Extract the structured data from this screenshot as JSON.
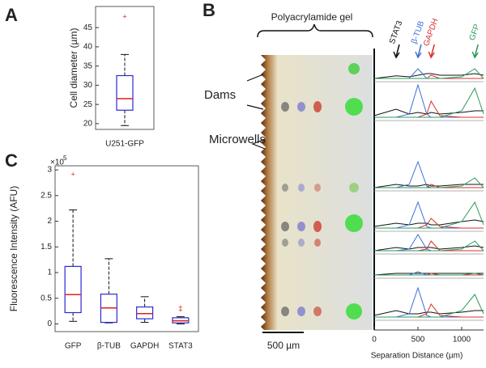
{
  "panel_labels": [
    "A",
    "B",
    "C"
  ],
  "gel": {
    "title": "Polyacrylamide gel",
    "labels": [
      "Dams",
      "Microwells"
    ],
    "scale_bar": "500 µm"
  },
  "chart_data": [
    {
      "type": "box",
      "ylabel": "Cell diameter (µm)",
      "categories": [
        "U251-GFP"
      ],
      "boxes": [
        {
          "whisker_low": 19.5,
          "q1": 23.5,
          "median": 26.5,
          "q3": 32.5,
          "whisker_high": 38,
          "outliers": [
            48
          ]
        }
      ],
      "ylim": [
        18.5,
        50.5
      ],
      "yticks": [
        20,
        25,
        30,
        35,
        40,
        45
      ],
      "box_color": "#2a2ad4",
      "median_color": "#e0201a"
    },
    {
      "type": "box",
      "ylabel": "Fluorescence Intensity (AFU)",
      "y_multiplier": "×10",
      "y_exponent": "5",
      "categories": [
        "GFP",
        "β-TUB",
        "GAPDH",
        "STAT3"
      ],
      "boxes": [
        {
          "whisker_low": 0.05,
          "q1": 0.22,
          "median": 0.57,
          "q3": 1.12,
          "whisker_high": 2.22,
          "outliers": [
            2.92
          ]
        },
        {
          "whisker_low": 0.02,
          "q1": 0.03,
          "median": 0.31,
          "q3": 0.58,
          "whisker_high": 1.27,
          "outliers": []
        },
        {
          "whisker_low": 0.03,
          "q1": 0.1,
          "median": 0.2,
          "q3": 0.33,
          "whisker_high": 0.53,
          "outliers": []
        },
        {
          "whisker_low": 0.0,
          "q1": 0.02,
          "median": 0.06,
          "q3": 0.12,
          "whisker_high": 0.14,
          "outliers": [
            0.27,
            0.33
          ]
        }
      ],
      "ylim": [
        -0.15,
        3.08
      ],
      "yticks": [
        0,
        0.5,
        1,
        1.5,
        2,
        2.5,
        3
      ],
      "box_color": "#2a2ad4",
      "median_color": "#e0201a"
    },
    {
      "type": "trace",
      "xlabel": "Separation Distance (µm)",
      "x": [
        0,
        250,
        400,
        500,
        600,
        650,
        750,
        1000,
        1150,
        1250
      ],
      "xlim": [
        0,
        1250
      ],
      "xticks": [
        0,
        500,
        1000
      ],
      "series": [
        {
          "name": "STAT3",
          "color": "#111111",
          "values": [
            [
              0,
              0.08,
              0.05,
              0.1,
              0.15,
              0.15,
              0.1,
              0.1,
              0.15,
              0.1
            ],
            [
              0.05,
              0.25,
              0.1,
              0.15,
              0.1,
              0.15,
              0.1,
              0.15,
              0.2,
              0.2
            ],
            [
              0,
              0.1,
              0.05,
              0.05,
              0.1,
              0.05,
              0.05,
              0.1,
              0.1,
              0.1
            ],
            [
              0.05,
              0.15,
              0.1,
              0.15,
              0.15,
              0.1,
              0.1,
              0.2,
              0.25,
              0.2
            ],
            [
              0,
              0.1,
              0.05,
              0.1,
              0.1,
              0.1,
              0.05,
              0.1,
              0.15,
              0.1
            ],
            [
              0,
              0.05,
              0.05,
              0.05,
              0.05,
              0.05,
              0.05,
              0.05,
              0.05,
              0.05
            ],
            [
              0.05,
              0.2,
              0.1,
              0.1,
              0.15,
              0.15,
              0.1,
              0.15,
              0.2,
              0.2
            ]
          ]
        },
        {
          "name": "β-TUB",
          "color": "#3d6fd8",
          "values": [
            [
              0,
              0,
              0,
              0.3,
              0,
              0,
              0,
              0,
              0,
              0
            ],
            [
              0,
              0,
              0.1,
              1,
              0.1,
              0,
              0,
              0,
              0,
              0
            ],
            [
              0,
              0,
              0.1,
              0.8,
              0.05,
              0,
              0,
              0,
              0,
              0
            ],
            [
              0,
              0,
              0.1,
              0.8,
              0.05,
              0,
              0,
              0,
              0,
              0
            ],
            [
              0,
              0,
              0.05,
              0.5,
              0.05,
              0,
              0,
              0,
              0,
              0
            ],
            [
              0,
              0,
              0,
              0.1,
              0,
              0,
              0,
              0,
              0,
              0
            ],
            [
              0,
              0,
              0.1,
              0.9,
              0.05,
              0,
              0,
              0,
              0,
              0
            ]
          ]
        },
        {
          "name": "GAPDH",
          "color": "#d83030",
          "values": [
            [
              0,
              0,
              0,
              0,
              0,
              0.1,
              0,
              0,
              0,
              0
            ],
            [
              0,
              0,
              0,
              0,
              0.1,
              0.5,
              0.05,
              0,
              0,
              0
            ],
            [
              0,
              0,
              0,
              0,
              0,
              0.1,
              0,
              0,
              0,
              0
            ],
            [
              0,
              0,
              0,
              0,
              0.1,
              0.3,
              0.05,
              0,
              0,
              0
            ],
            [
              0,
              0,
              0,
              0,
              0.05,
              0.3,
              0,
              0,
              0,
              0
            ],
            [
              0,
              0,
              0,
              0,
              0,
              0.05,
              0,
              0,
              0,
              0
            ],
            [
              0,
              0,
              0,
              0,
              0.1,
              0.4,
              0.05,
              0,
              0,
              0
            ]
          ]
        },
        {
          "name": "GFP",
          "color": "#2a9a5a",
          "values": [
            [
              0,
              0,
              0,
              0,
              0,
              0,
              0,
              0.05,
              0.3,
              0
            ],
            [
              0,
              0,
              0,
              0,
              0,
              0,
              0,
              0.2,
              0.9,
              0.1
            ],
            [
              0,
              0,
              0,
              0,
              0,
              0,
              0,
              0.05,
              0.3,
              0
            ],
            [
              0,
              0,
              0,
              0,
              0,
              0,
              0,
              0.2,
              0.8,
              0.1
            ],
            [
              0,
              0,
              0,
              0,
              0,
              0,
              0,
              0.05,
              0.3,
              0
            ],
            [
              0,
              0,
              0,
              0,
              0,
              0,
              0,
              0,
              0.05,
              0
            ],
            [
              0,
              0,
              0,
              0,
              0,
              0,
              0,
              0.2,
              0.7,
              0.1
            ]
          ]
        }
      ]
    }
  ]
}
